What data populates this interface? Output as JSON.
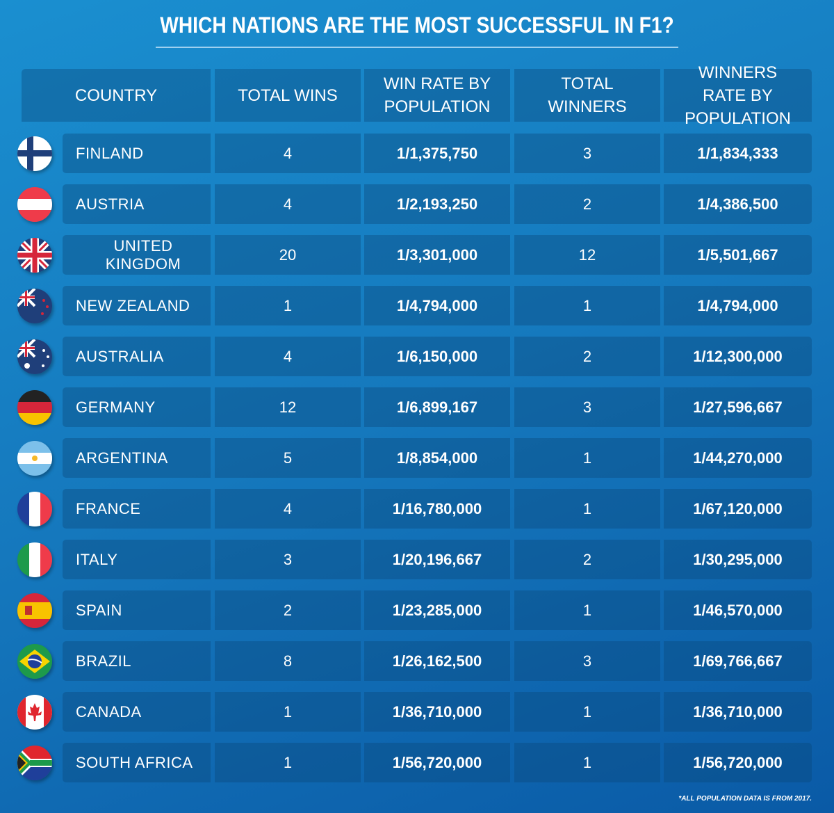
{
  "title": "WHICH NATIONS ARE THE MOST SUCCESSFUL IN F1?",
  "footnote": "*ALL POPULATION DATA IS FROM 2017.",
  "chart_data": {
    "type": "table",
    "title": "WHICH NATIONS ARE THE MOST SUCCESSFUL IN F1?",
    "columns": [
      "COUNTRY",
      "TOTAL WINS",
      "WIN RATE BY POPULATION",
      "TOTAL WINNERS",
      "WINNERS RATE BY POPULATION"
    ],
    "rows": [
      {
        "flag": "finland-flag",
        "country": "FINLAND",
        "wins": "4",
        "win_rate": "1/1,375,750",
        "winners": "3",
        "winners_rate": "1/1,834,333"
      },
      {
        "flag": "austria-flag",
        "country": "AUSTRIA",
        "wins": "4",
        "win_rate": "1/2,193,250",
        "winners": "2",
        "winners_rate": "1/4,386,500"
      },
      {
        "flag": "uk-flag",
        "country": "UNITED KINGDOM",
        "wins": "20",
        "win_rate": "1/3,301,000",
        "winners": "12",
        "winners_rate": "1/5,501,667"
      },
      {
        "flag": "new-zealand-flag",
        "country": "NEW ZEALAND",
        "wins": "1",
        "win_rate": "1/4,794,000",
        "winners": "1",
        "winners_rate": "1/4,794,000"
      },
      {
        "flag": "australia-flag",
        "country": "AUSTRALIA",
        "wins": "4",
        "win_rate": "1/6,150,000",
        "winners": "2",
        "winners_rate": "1/12,300,000"
      },
      {
        "flag": "germany-flag",
        "country": "GERMANY",
        "wins": "12",
        "win_rate": "1/6,899,167",
        "winners": "3",
        "winners_rate": "1/27,596,667"
      },
      {
        "flag": "argentina-flag",
        "country": "ARGENTINA",
        "wins": "5",
        "win_rate": "1/8,854,000",
        "winners": "1",
        "winners_rate": "1/44,270,000"
      },
      {
        "flag": "france-flag",
        "country": "FRANCE",
        "wins": "4",
        "win_rate": "1/16,780,000",
        "winners": "1",
        "winners_rate": "1/67,120,000"
      },
      {
        "flag": "italy-flag",
        "country": "ITALY",
        "wins": "3",
        "win_rate": "1/20,196,667",
        "winners": "2",
        "winners_rate": "1/30,295,000"
      },
      {
        "flag": "spain-flag",
        "country": "SPAIN",
        "wins": "2",
        "win_rate": "1/23,285,000",
        "winners": "1",
        "winners_rate": "1/46,570,000"
      },
      {
        "flag": "brazil-flag",
        "country": "BRAZIL",
        "wins": "8",
        "win_rate": "1/26,162,500",
        "winners": "3",
        "winners_rate": "1/69,766,667"
      },
      {
        "flag": "canada-flag",
        "country": "CANADA",
        "wins": "1",
        "win_rate": "1/36,710,000",
        "winners": "1",
        "winners_rate": "1/36,710,000"
      },
      {
        "flag": "south-africa-flag",
        "country": "SOUTH AFRICA",
        "wins": "1",
        "win_rate": "1/56,720,000",
        "winners": "1",
        "winners_rate": "1/56,720,000"
      }
    ]
  },
  "colors": {
    "background": "#1578bd",
    "cell": "#10659f",
    "text": "#ffffff"
  }
}
